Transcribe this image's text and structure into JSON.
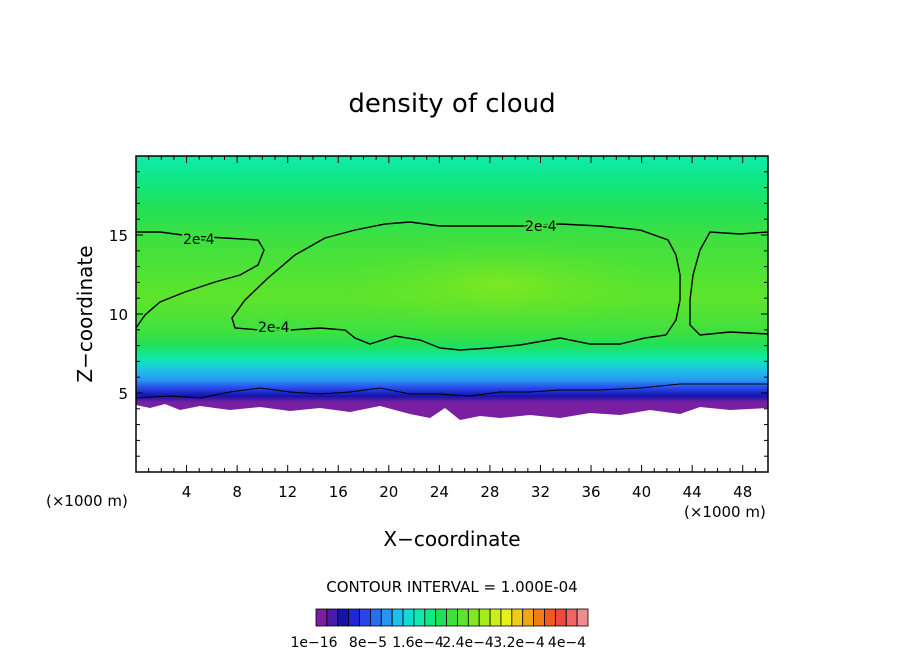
{
  "chart_data": {
    "type": "contour",
    "title": "density of cloud",
    "xlabel": "X−coordinate",
    "ylabel": "Z−coordinate",
    "x_unit_left": "(×1000 m)",
    "x_unit_right": "(×1000 m)",
    "xlim": [
      0,
      50
    ],
    "ylim": [
      0,
      20
    ],
    "x_ticks": [
      4,
      8,
      12,
      16,
      20,
      24,
      28,
      32,
      36,
      40,
      44,
      48
    ],
    "y_ticks": [
      5,
      10,
      15
    ],
    "contour_labels": [
      "2e-4",
      "2e-4",
      "2e-4"
    ],
    "contour_interval_text": "CONTOUR INTERVAL = 1.000E-04",
    "colorbar": {
      "colors": [
        "#7a1fa2",
        "#4a1aa8",
        "#1414a8",
        "#1e28d2",
        "#2846ea",
        "#2a6ef0",
        "#2896f0",
        "#1ebfea",
        "#10dcd6",
        "#10eaaa",
        "#10e884",
        "#20e05a",
        "#3ee040",
        "#5ee42c",
        "#82e820",
        "#a6ec18",
        "#caee18",
        "#eaee18",
        "#f0cc18",
        "#f0a818",
        "#f07e18",
        "#f05a20",
        "#f04840",
        "#f06464",
        "#f08c8c"
      ],
      "tick_labels": [
        "1e−16",
        "8e−5",
        "1.6e−4",
        "2.4e−4",
        "3.2e−4",
        "4e−4"
      ]
    }
  }
}
